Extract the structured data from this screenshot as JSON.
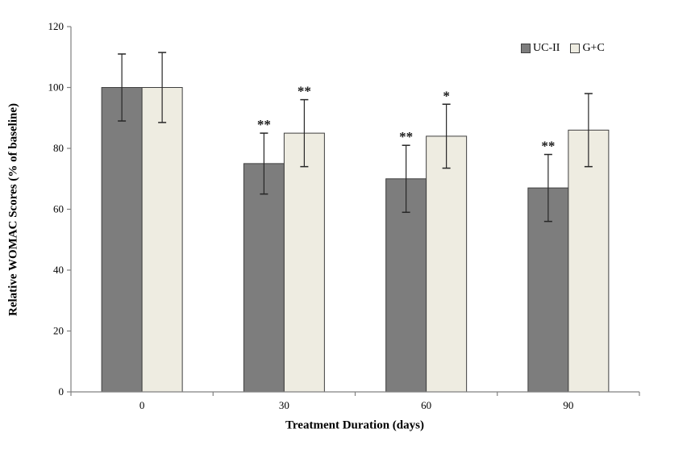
{
  "chart_data": {
    "type": "bar",
    "title": "",
    "xlabel": "Treatment Duration (days)",
    "ylabel": "Relative WOMAC Scores (% of baseline)",
    "categories": [
      "0",
      "30",
      "60",
      "90"
    ],
    "series": [
      {
        "name": "UC-II",
        "fill": "#7d7d7d",
        "stroke": "#3f3f3f",
        "values": [
          100,
          75,
          70,
          67
        ],
        "error_bars": [
          11,
          10,
          11,
          11
        ],
        "significance": [
          "",
          "**",
          "**",
          "**"
        ]
      },
      {
        "name": "G+C",
        "fill": "#eeece1",
        "stroke": "#3f3f3f",
        "values": [
          100,
          85,
          84,
          86
        ],
        "error_bars": [
          11.5,
          11,
          10.5,
          12
        ],
        "significance": [
          "",
          "**",
          "*",
          ""
        ]
      }
    ],
    "ylim": [
      0,
      120
    ],
    "yticks": [
      0,
      20,
      40,
      60,
      80,
      100,
      120
    ],
    "legend_position": "top-right",
    "grid": false,
    "axis_color": "#808080",
    "error_bar_color": "#262626",
    "text_color": "#000000"
  }
}
